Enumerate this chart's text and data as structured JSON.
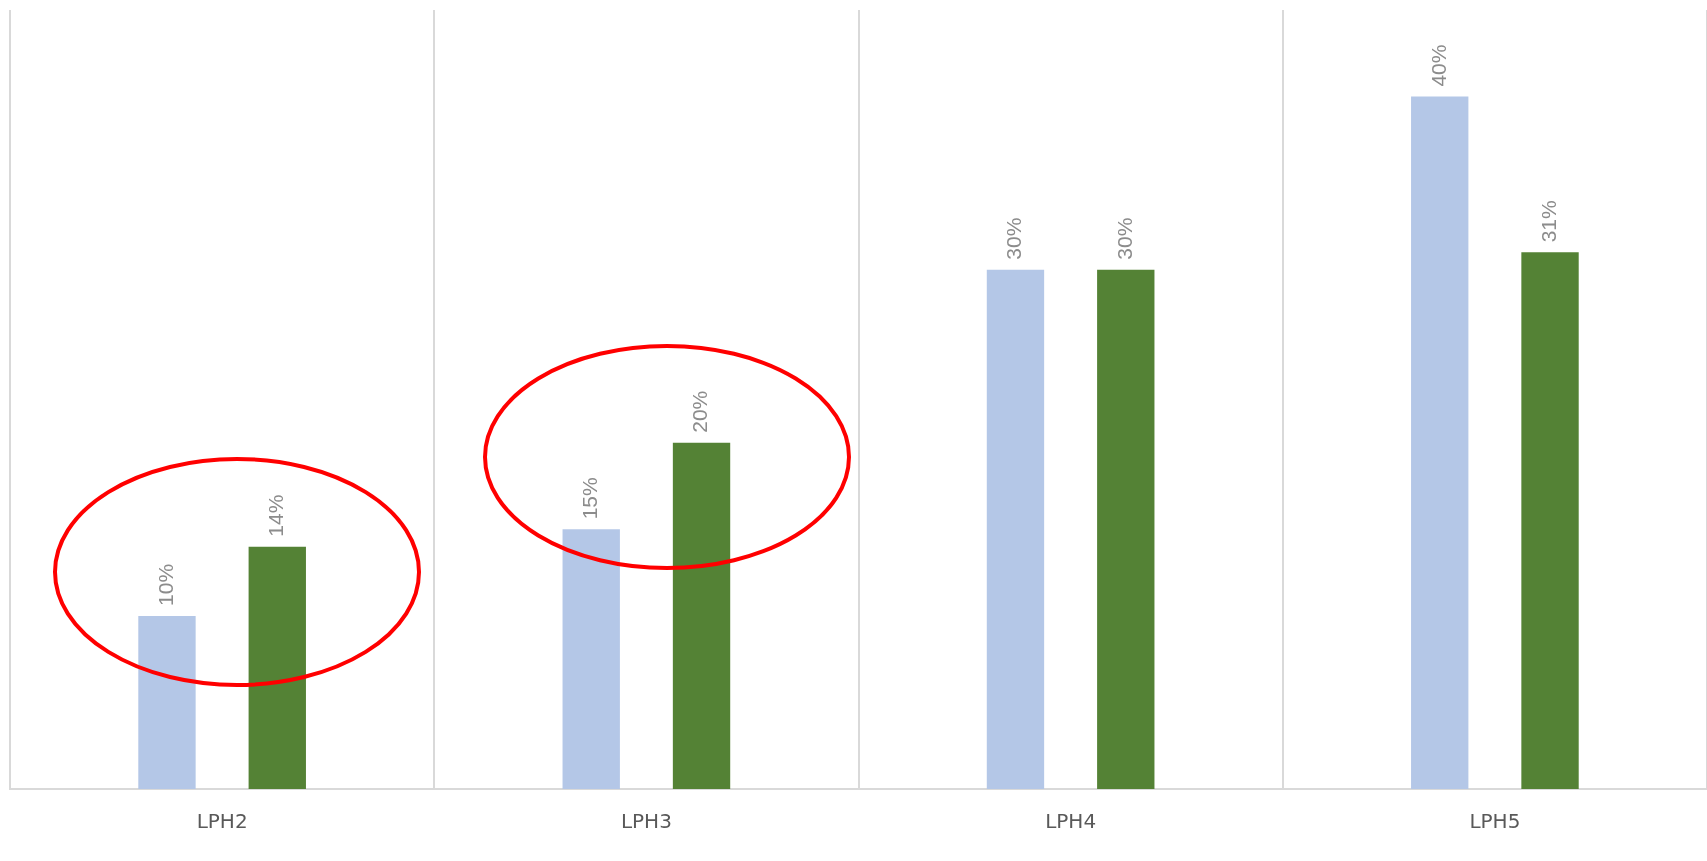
{
  "chart_data": {
    "type": "bar",
    "categories": [
      "LPH2",
      "LPH3",
      "LPH4",
      "LPH5"
    ],
    "series": [
      {
        "color": "#b4c7e7",
        "values": [
          10,
          15,
          30,
          40
        ],
        "value_labels": [
          "10%",
          "15%",
          "30%",
          "40%"
        ]
      },
      {
        "color": "#548235",
        "values": [
          14,
          20,
          30,
          31
        ],
        "value_labels": [
          "14%",
          "20%",
          "30%",
          "31%"
        ]
      }
    ],
    "grid": "x",
    "legend": false,
    "tick_labels": "x"
  }
}
